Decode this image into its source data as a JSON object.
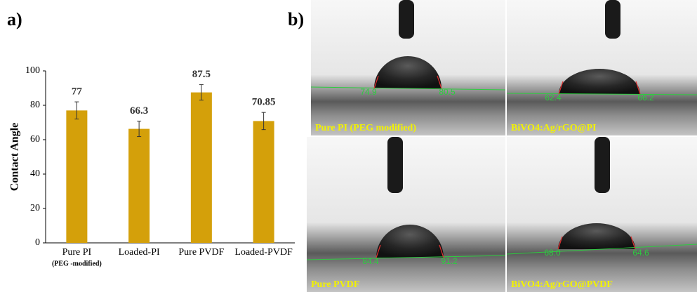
{
  "panel_a_label": "a)",
  "panel_b_label": "b)",
  "chart_data": {
    "type": "bar",
    "categories": [
      "Pure PI",
      "Loaded-PI",
      "Pure PVDF",
      "Loaded-PVDF"
    ],
    "category_note": "(PEG -modified)",
    "values": [
      77,
      66.3,
      87.5,
      70.85
    ],
    "errors": [
      5,
      4.5,
      4.5,
      5
    ],
    "color": "#d4a00a",
    "ylabel": "Contact Angle",
    "ylim": [
      0,
      100
    ],
    "yticks": [
      0,
      20,
      40,
      60,
      80,
      100
    ]
  },
  "images": [
    {
      "caption": "Pure PI (PEG modified)",
      "left_angle": "74.9",
      "right_angle": "80.5"
    },
    {
      "caption": "BiVO4:Ag/rGO@PI",
      "left_angle": "62.4",
      "right_angle": "66.2"
    },
    {
      "caption": "Pure PVDF",
      "left_angle": "84.4",
      "right_angle": "91.2"
    },
    {
      "caption": "BiVO4:Ag/rGO@PVDF",
      "left_angle": "68.0",
      "right_angle": "64.6"
    }
  ]
}
